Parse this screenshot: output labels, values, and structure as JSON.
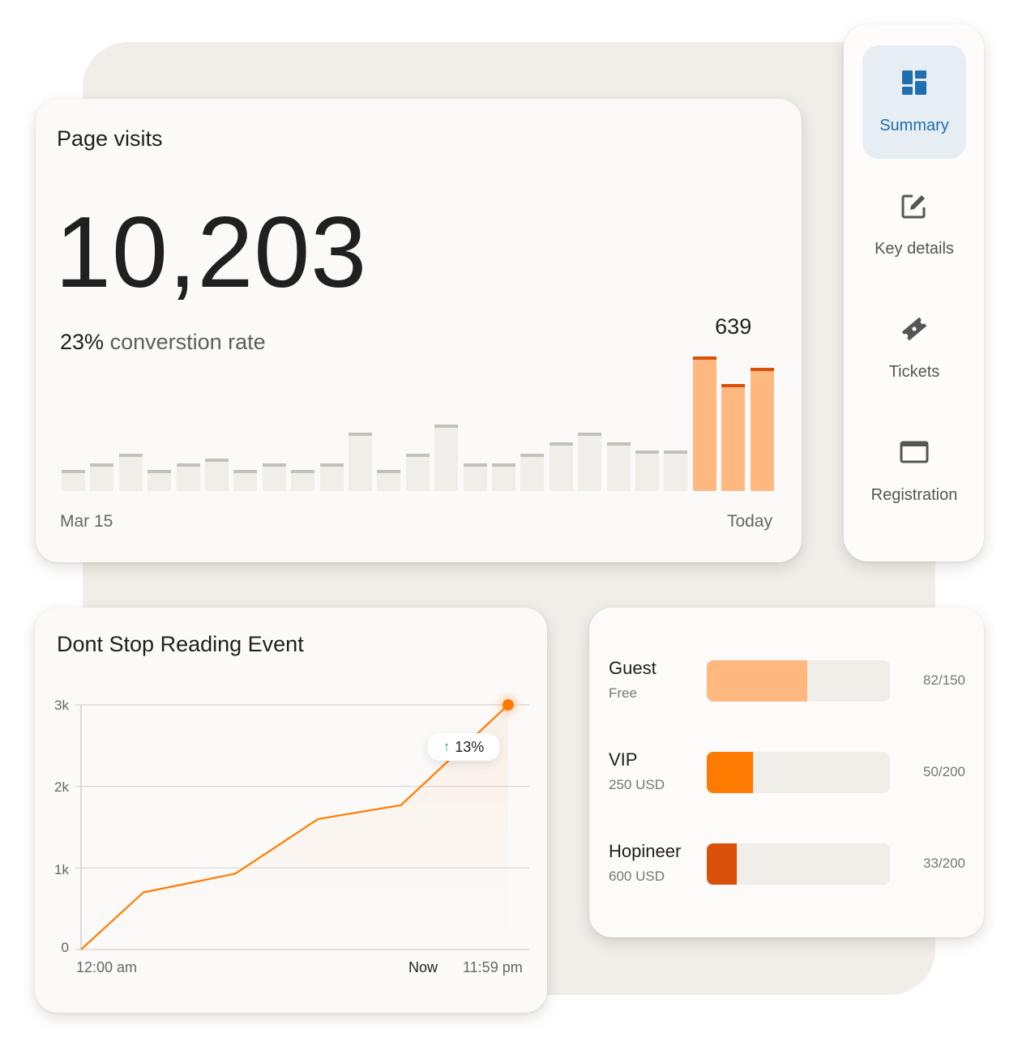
{
  "page_visits": {
    "title": "Page visits",
    "total": "10,203",
    "conversion_pct": "23%",
    "conversion_label": "converstion rate",
    "peak_label": "639",
    "peak_index": 23,
    "axis_start": "Mar 15",
    "axis_end": "Today",
    "colors": {
      "bar_muted": "#f1ede8",
      "cap_muted": "#c4c1bd",
      "bar_highlight": "#ffb980",
      "cap_highlight": "#d9500a"
    }
  },
  "chart_data": [
    {
      "type": "bar",
      "title": "Page visits",
      "xlabel": "",
      "ylabel": "",
      "x_tick_labels": [
        "Mar 15",
        "Today"
      ],
      "categories": [
        "d1",
        "d2",
        "d3",
        "d4",
        "d5",
        "d6",
        "d7",
        "d8",
        "d9",
        "d10",
        "d11",
        "d12",
        "d13",
        "d14",
        "d15",
        "d16",
        "d17",
        "d18",
        "d19",
        "d20",
        "d21",
        "d22",
        "d23",
        "d24",
        "d25"
      ],
      "values": [
        26,
        34,
        46,
        26,
        34,
        40,
        26,
        34,
        26,
        34,
        72,
        26,
        46,
        82,
        34,
        34,
        46,
        60,
        72,
        60,
        50,
        50,
        166,
        132,
        152
      ],
      "highlighted": [
        22,
        23,
        24
      ],
      "annotations": [
        {
          "index": 23,
          "text": "639"
        }
      ],
      "grid": false
    },
    {
      "type": "line",
      "title": "Dont Stop Reading Event",
      "x": [
        "12:00 am",
        "",
        "",
        "",
        "Now",
        "11:59 pm"
      ],
      "x_positions": [
        0,
        0.146,
        0.361,
        0.555,
        0.749,
        1.0
      ],
      "values": [
        0,
        700,
        930,
        1600,
        1770,
        3000
      ],
      "y_ticks": [
        "0",
        "1k",
        "2k",
        "3k"
      ],
      "ylim": [
        0,
        3000
      ],
      "grid": true,
      "annotations": [
        {
          "text": "13%",
          "direction": "up",
          "color": "#21b26a"
        }
      ],
      "line_color": "#ff7a00"
    },
    {
      "type": "bar",
      "orientation": "horizontal",
      "categories": [
        "Guest",
        "VIP",
        "Hopineer"
      ],
      "values": [
        82,
        50,
        33
      ],
      "capacity": [
        150,
        200,
        200
      ]
    }
  ],
  "sidebar": {
    "items": [
      {
        "label": "Summary",
        "icon": "dashboard-icon",
        "active": true
      },
      {
        "label": "Key details",
        "icon": "edit-icon",
        "active": false
      },
      {
        "label": "Tickets",
        "icon": "ticket-icon",
        "active": false
      },
      {
        "label": "Registration",
        "icon": "window-icon",
        "active": false
      }
    ],
    "active_color": "#1f6fb0",
    "active_bg": "#e6edf3"
  },
  "event_chart": {
    "title": "Dont Stop Reading Event",
    "y_ticks": [
      "3k",
      "2k",
      "1k",
      "0"
    ],
    "x_start": "12:00 am",
    "x_now": "Now",
    "x_end": "11:59 pm",
    "badge_value": "13%",
    "badge_arrow": "↑"
  },
  "tickets": [
    {
      "name": "Guest",
      "price": "Free",
      "sold": 82,
      "total": 150,
      "count": "82/150",
      "color": "#ffb980"
    },
    {
      "name": "VIP",
      "price": "250 USD",
      "sold": 50,
      "total": 200,
      "count": "50/200",
      "color": "#ff7a00"
    },
    {
      "name": "Hopineer",
      "price": "600 USD",
      "sold": 33,
      "total": 200,
      "count": "33/200",
      "color": "#d9500a"
    }
  ]
}
